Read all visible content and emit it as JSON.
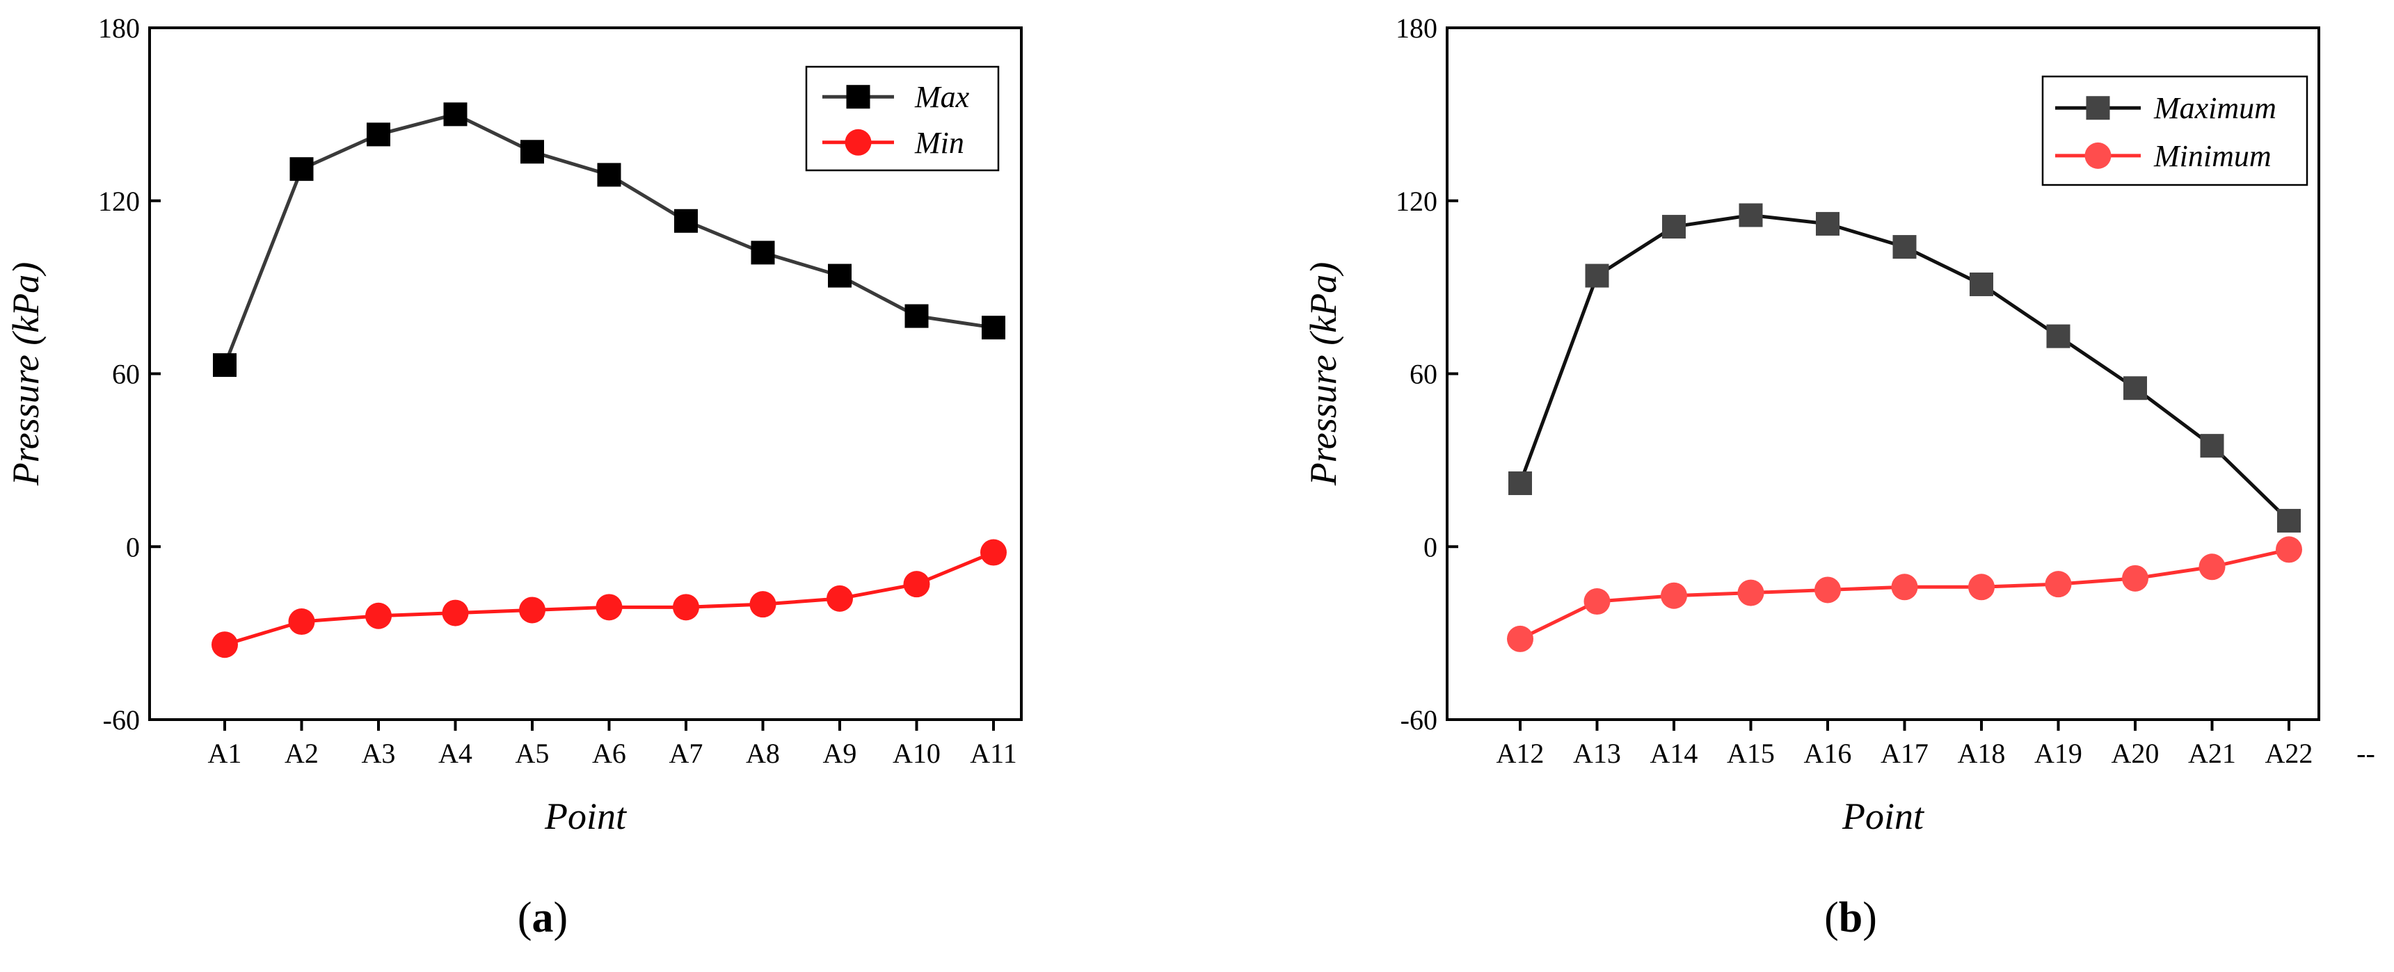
{
  "chart_data": [
    {
      "type": "line",
      "panel_label_prefix": "(",
      "panel_label_letter": "a",
      "panel_label_suffix": ")",
      "xlabel": "Point",
      "ylabel": "Pressure (kPa)",
      "ylim": [
        -60,
        180
      ],
      "yticks": [
        -60,
        0,
        60,
        120,
        180
      ],
      "categories": [
        "A1",
        "A2",
        "A3",
        "A4",
        "A5",
        "A6",
        "A7",
        "A8",
        "A9",
        "A10",
        "A11"
      ],
      "extra_tick": "",
      "series": [
        {
          "name": "Max",
          "color": "#000000",
          "line_color": "#3a3a3a",
          "marker": "square",
          "values": [
            63,
            131,
            143,
            150,
            137,
            129,
            113,
            102,
            94,
            80,
            76
          ]
        },
        {
          "name": "Min",
          "color": "#ff1a1a",
          "line_color": "#ff1a1a",
          "marker": "circle",
          "values": [
            -34,
            -26,
            -24,
            -23,
            -22,
            -21,
            -21,
            -20,
            -18,
            -13,
            -2
          ]
        }
      ]
    },
    {
      "type": "line",
      "panel_label_prefix": "(",
      "panel_label_letter": "b",
      "panel_label_suffix": ")",
      "xlabel": "Point",
      "ylabel": "Pressure (kPa)",
      "ylim": [
        -60,
        180
      ],
      "yticks": [
        -60,
        0,
        60,
        120,
        180
      ],
      "categories": [
        "A12",
        "A13",
        "A14",
        "A15",
        "A16",
        "A17",
        "A18",
        "A19",
        "A20",
        "A21",
        "A22"
      ],
      "extra_tick": "--",
      "series": [
        {
          "name": "Maximum",
          "color": "#444444",
          "line_color": "#111111",
          "marker": "square",
          "values": [
            22,
            94,
            111,
            115,
            112,
            104,
            91,
            73,
            55,
            35,
            9
          ]
        },
        {
          "name": "Minimum",
          "color": "#ff4d4d",
          "line_color": "#ff3030",
          "marker": "circle",
          "values": [
            -32,
            -19,
            -17,
            -16,
            -15,
            -14,
            -14,
            -13,
            -11,
            -7,
            -1
          ]
        }
      ]
    }
  ]
}
